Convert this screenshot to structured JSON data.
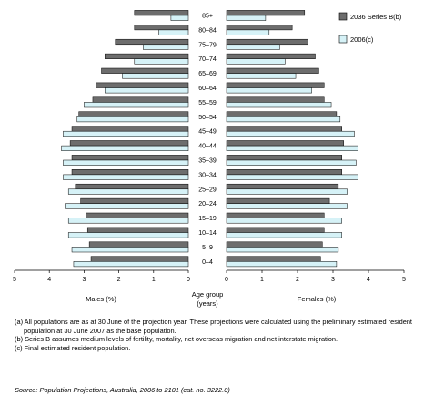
{
  "chart_data": {
    "type": "bar",
    "orientation": "horizontal",
    "layout": "population-pyramid",
    "categories": [
      "0–4",
      "5–9",
      "10–14",
      "15–19",
      "20–24",
      "25–29",
      "30–34",
      "35–39",
      "40–44",
      "45–49",
      "50–54",
      "55–59",
      "60–64",
      "65–69",
      "70–74",
      "75–79",
      "80–84",
      "85+"
    ],
    "center_label": [
      "Age group",
      "(years)"
    ],
    "left_label": "Males (%)",
    "right_label": "Females (%)",
    "xlim": [
      0,
      5
    ],
    "x_ticks": [
      "5",
      "4",
      "3",
      "2",
      "1",
      "0",
      "0",
      "1",
      "2",
      "3",
      "4",
      "5"
    ],
    "legend_position": "top-right",
    "series": [
      {
        "name": "2036 Series B(b)",
        "color": "#6d6d6d",
        "males": [
          2.8,
          2.85,
          2.9,
          2.95,
          3.1,
          3.25,
          3.35,
          3.35,
          3.4,
          3.35,
          3.15,
          2.75,
          2.65,
          2.5,
          2.4,
          2.1,
          1.55,
          1.55
        ],
        "females": [
          2.65,
          2.7,
          2.75,
          2.75,
          2.9,
          3.15,
          3.25,
          3.25,
          3.3,
          3.25,
          3.1,
          2.75,
          2.75,
          2.6,
          2.5,
          2.3,
          1.85,
          2.2
        ]
      },
      {
        "name": "2006(c)",
        "color": "#d6f2f7",
        "males": [
          3.3,
          3.35,
          3.45,
          3.45,
          3.55,
          3.45,
          3.6,
          3.6,
          3.65,
          3.6,
          3.2,
          3.0,
          2.4,
          1.9,
          1.55,
          1.3,
          0.85,
          0.5
        ],
        "females": [
          3.1,
          3.15,
          3.25,
          3.25,
          3.4,
          3.4,
          3.7,
          3.65,
          3.7,
          3.6,
          3.2,
          2.95,
          2.4,
          1.95,
          1.65,
          1.5,
          1.2,
          1.1
        ]
      }
    ]
  },
  "notes": [
    "(a) All populations are as at 30 June of the projection year. These projections were calculated using the preliminary estimated resident population at 30 June 2007 as the base population.",
    "(b) Series B assumes medium levels of fertility, mortality, net overseas migration and net interstate migration.",
    "(c) Final estimated resident population."
  ],
  "source": "Source: Population Projections, Australia, 2006 to 2101 (cat. no. 3222.0)"
}
